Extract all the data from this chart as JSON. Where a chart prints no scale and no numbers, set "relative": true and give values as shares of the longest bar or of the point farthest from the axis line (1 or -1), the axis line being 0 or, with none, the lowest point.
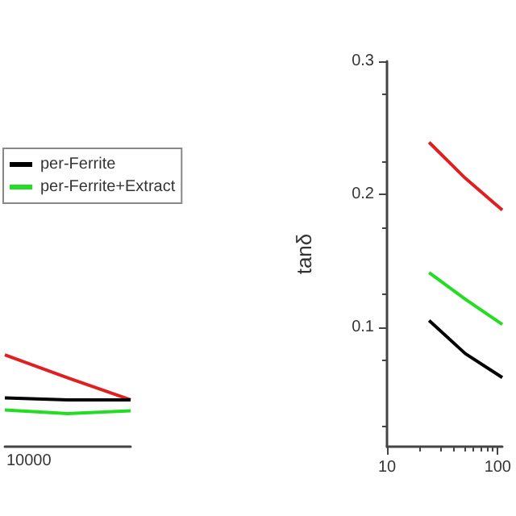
{
  "chart_data": [
    {
      "type": "line",
      "relative": true,
      "categories": [
        null,
        null,
        null
      ],
      "annotations": [
        "10000"
      ],
      "legend": "top right",
      "series": [
        {
          "color": "#e02020",
          "values": [
            1,
            0.75,
            0.51
          ]
        },
        {
          "name": "per-Ferrite",
          "color": "#000000",
          "values": [
            0.53,
            0.51,
            0.51
          ]
        },
        {
          "name": "per-Ferrite+Extract",
          "color": "#22dd22",
          "values": [
            0.4,
            0.36,
            0.39
          ]
        }
      ]
    },
    {
      "type": "line",
      "log": "x",
      "ylabel": "tanδ",
      "xlim": [
        10,
        110
      ],
      "xticks": [
        10,
        100
      ],
      "ylim": [
        0.01,
        0.3
      ],
      "yticks": [
        0.1,
        0.2,
        0.3
      ],
      "series": [
        {
          "color": "#e02020",
          "x": [
            24,
            51,
            110
          ],
          "values": [
            0.239,
            0.212,
            0.188
          ]
        },
        {
          "color": "#22dd22",
          "x": [
            24,
            51,
            110
          ],
          "values": [
            0.141,
            0.121,
            0.102
          ]
        },
        {
          "color": "#000000",
          "x": [
            24,
            51,
            110
          ],
          "values": [
            0.105,
            0.08,
            0.062
          ]
        }
      ]
    }
  ]
}
